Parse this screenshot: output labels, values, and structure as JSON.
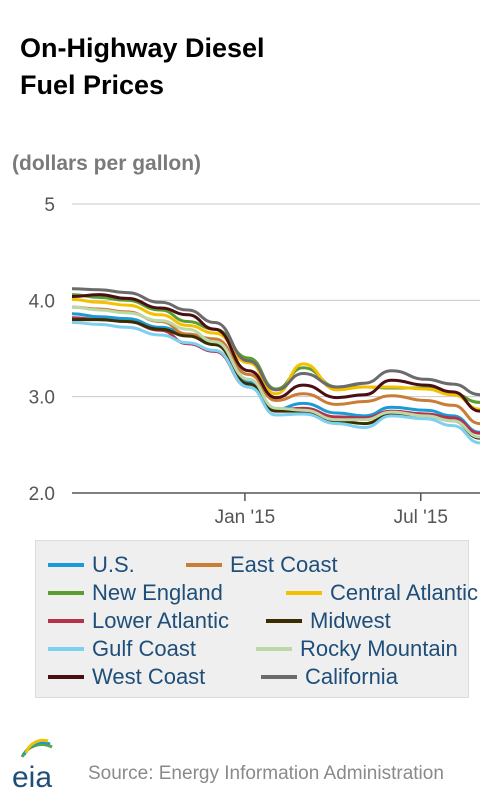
{
  "header": {
    "title_line1": "On-Highway Diesel",
    "title_line2": "Fuel Prices",
    "unit": "(dollars per gallon)"
  },
  "footer": {
    "logo_text": "eia",
    "source": "Source: Energy Information Administration"
  },
  "legend": {
    "items": [
      {
        "label": "U.S.",
        "color": "#1a9ad6"
      },
      {
        "label": "East Coast",
        "color": "#c97d36"
      },
      {
        "label": "New England",
        "color": "#5a9e32"
      },
      {
        "label": "Central Atlantic",
        "color": "#f5c000"
      },
      {
        "label": "Lower Atlantic",
        "color": "#b5334a"
      },
      {
        "label": "Midwest",
        "color": "#3a2e00"
      },
      {
        "label": "Gulf Coast",
        "color": "#7dd0f0"
      },
      {
        "label": "Rocky Mountain",
        "color": "#bcd8a8"
      },
      {
        "label": "West Coast",
        "color": "#4a0f12"
      },
      {
        "label": "California",
        "color": "#6b6b6b"
      }
    ]
  },
  "chart_data": {
    "type": "line",
    "title": "On-Highway Diesel Fuel Prices",
    "ylabel": "(dollars per gallon)",
    "ylim": [
      2.0,
      5.0
    ],
    "yticks": [
      {
        "value": 5,
        "label": "5"
      },
      {
        "value": 4,
        "label": "4.0"
      },
      {
        "value": 3,
        "label": "3.0"
      },
      {
        "value": 2,
        "label": "2.0"
      }
    ],
    "xlim": [
      "2014-07-07",
      "2015-08-31"
    ],
    "xticks": [
      {
        "value": "2015-01-01",
        "label": "Jan '15"
      },
      {
        "value": "2015-07-01",
        "label": "Jul '15"
      }
    ],
    "grid": true,
    "dates": [
      "2014-07-07",
      "2014-08-04",
      "2014-09-01",
      "2014-10-06",
      "2014-11-03",
      "2014-12-01",
      "2015-01-05",
      "2015-02-02",
      "2015-03-02",
      "2015-04-06",
      "2015-05-04",
      "2015-06-01",
      "2015-07-06",
      "2015-08-03",
      "2015-08-31"
    ],
    "series": [
      {
        "name": "U.S.",
        "values": [
          3.86,
          3.83,
          3.81,
          3.72,
          3.65,
          3.55,
          3.15,
          2.87,
          2.93,
          2.83,
          2.8,
          2.89,
          2.86,
          2.8,
          2.63
        ]
      },
      {
        "name": "East Coast",
        "values": [
          3.93,
          3.91,
          3.88,
          3.78,
          3.65,
          3.6,
          3.23,
          2.96,
          3.03,
          2.92,
          2.95,
          3.01,
          2.96,
          2.91,
          2.72
        ]
      },
      {
        "name": "New England",
        "values": [
          4.06,
          4.03,
          4.0,
          3.9,
          3.78,
          3.7,
          3.4,
          3.08,
          3.3,
          3.1,
          3.1,
          3.09,
          3.09,
          3.03,
          2.94
        ]
      },
      {
        "name": "Central Atlantic",
        "values": [
          4.01,
          3.98,
          3.95,
          3.85,
          3.74,
          3.66,
          3.35,
          3.03,
          3.34,
          3.07,
          3.1,
          3.1,
          3.08,
          3.02,
          2.87
        ]
      },
      {
        "name": "Lower Atlantic",
        "values": [
          3.82,
          3.8,
          3.78,
          3.69,
          3.55,
          3.47,
          3.1,
          2.86,
          2.88,
          2.79,
          2.78,
          2.85,
          2.82,
          2.78,
          2.62
        ]
      },
      {
        "name": "Midwest",
        "values": [
          3.8,
          3.8,
          3.78,
          3.7,
          3.63,
          3.54,
          3.13,
          2.85,
          2.85,
          2.75,
          2.72,
          2.82,
          2.8,
          2.75,
          2.57
        ]
      },
      {
        "name": "Gulf Coast",
        "values": [
          3.77,
          3.75,
          3.72,
          3.64,
          3.56,
          3.48,
          3.1,
          2.81,
          2.82,
          2.72,
          2.68,
          2.8,
          2.77,
          2.7,
          2.52
        ]
      },
      {
        "name": "Rocky Mountain",
        "values": [
          3.93,
          3.9,
          3.87,
          3.79,
          3.7,
          3.57,
          3.18,
          2.88,
          2.86,
          2.76,
          2.76,
          2.84,
          2.8,
          2.75,
          2.58
        ]
      },
      {
        "name": "West Coast",
        "values": [
          4.04,
          4.06,
          4.02,
          3.92,
          3.85,
          3.7,
          3.27,
          2.99,
          3.12,
          2.99,
          3.02,
          3.17,
          3.12,
          3.05,
          2.85
        ]
      },
      {
        "name": "California",
        "values": [
          4.12,
          4.11,
          4.08,
          3.98,
          3.9,
          3.77,
          3.37,
          3.07,
          3.24,
          3.1,
          3.14,
          3.27,
          3.18,
          3.13,
          3.02
        ]
      }
    ]
  }
}
